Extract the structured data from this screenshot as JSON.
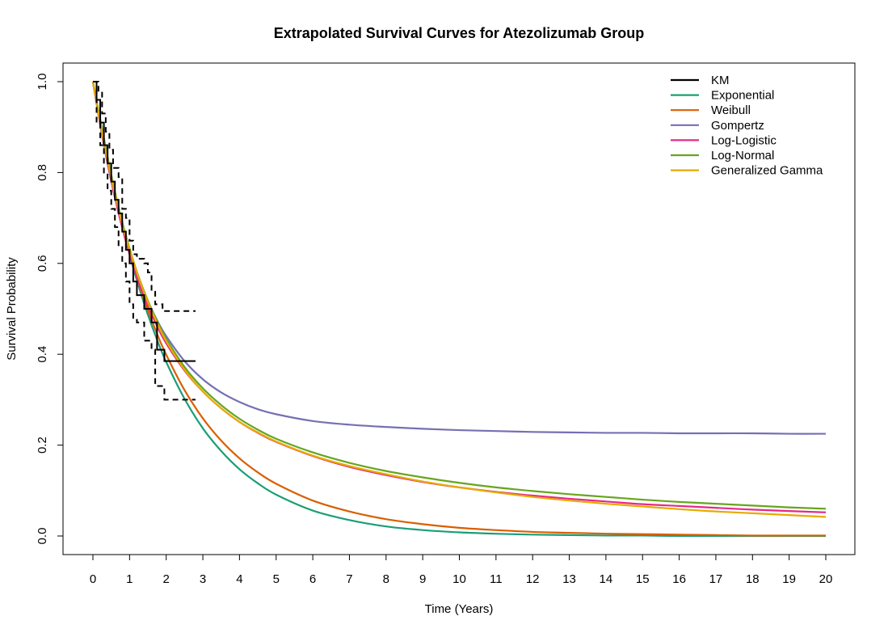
{
  "chart_data": {
    "type": "line",
    "title": "Extrapolated Survival Curves for Atezolizumab Group",
    "xlabel": "Time (Years)",
    "ylabel": "Survival Probability",
    "xlim": [
      0,
      20
    ],
    "ylim": [
      0,
      1
    ],
    "x_ticks": [
      "0",
      "1",
      "2",
      "3",
      "4",
      "5",
      "6",
      "7",
      "8",
      "9",
      "10",
      "11",
      "12",
      "13",
      "14",
      "15",
      "16",
      "17",
      "18",
      "19",
      "20"
    ],
    "y_ticks": [
      "0.0",
      "0.2",
      "0.4",
      "0.6",
      "0.8",
      "1.0"
    ],
    "grid": false,
    "legend_position": "top-right",
    "x": [
      0,
      0.25,
      0.5,
      0.75,
      1,
      1.25,
      1.5,
      1.75,
      2,
      2.5,
      3,
      3.5,
      4,
      4.5,
      5,
      6,
      7,
      8,
      9,
      10,
      11,
      12,
      13,
      14,
      15,
      16,
      17,
      18,
      19,
      20
    ],
    "series": [
      {
        "name": "Exponential",
        "color": "#1b9e77",
        "values": [
          1.0,
          0.887,
          0.787,
          0.698,
          0.619,
          0.549,
          0.487,
          0.432,
          0.383,
          0.302,
          0.237,
          0.187,
          0.147,
          0.116,
          0.091,
          0.056,
          0.035,
          0.021,
          0.013,
          0.008,
          0.005,
          0.003,
          0.002,
          0.001,
          0.001,
          0.0,
          0.0,
          0.0,
          0.0,
          0.0
        ]
      },
      {
        "name": "Weibull",
        "color": "#d95f02",
        "values": [
          1.0,
          0.885,
          0.785,
          0.698,
          0.622,
          0.556,
          0.497,
          0.445,
          0.399,
          0.321,
          0.259,
          0.21,
          0.171,
          0.14,
          0.115,
          0.078,
          0.054,
          0.037,
          0.026,
          0.018,
          0.013,
          0.009,
          0.007,
          0.005,
          0.004,
          0.003,
          0.002,
          0.001,
          0.001,
          0.001
        ]
      },
      {
        "name": "Gompertz",
        "color": "#7570b3",
        "values": [
          1.0,
          0.881,
          0.781,
          0.697,
          0.627,
          0.567,
          0.517,
          0.475,
          0.44,
          0.385,
          0.345,
          0.316,
          0.295,
          0.279,
          0.268,
          0.253,
          0.245,
          0.24,
          0.236,
          0.233,
          0.231,
          0.229,
          0.228,
          0.227,
          0.227,
          0.226,
          0.226,
          0.226,
          0.225,
          0.225
        ]
      },
      {
        "name": "Log-Logistic",
        "color": "#e7298a",
        "values": [
          1.0,
          0.885,
          0.782,
          0.694,
          0.62,
          0.558,
          0.506,
          0.462,
          0.424,
          0.364,
          0.318,
          0.281,
          0.251,
          0.227,
          0.207,
          0.176,
          0.152,
          0.134,
          0.119,
          0.107,
          0.097,
          0.089,
          0.082,
          0.076,
          0.07,
          0.066,
          0.062,
          0.058,
          0.055,
          0.052
        ]
      },
      {
        "name": "Log-Normal",
        "color": "#66a61e",
        "values": [
          1.0,
          0.896,
          0.795,
          0.707,
          0.633,
          0.57,
          0.518,
          0.473,
          0.434,
          0.372,
          0.325,
          0.288,
          0.258,
          0.234,
          0.214,
          0.184,
          0.161,
          0.143,
          0.129,
          0.117,
          0.107,
          0.099,
          0.092,
          0.086,
          0.08,
          0.075,
          0.071,
          0.067,
          0.063,
          0.06
        ]
      },
      {
        "name": "Generalized Gamma",
        "color": "#e6ab02",
        "values": [
          1.0,
          0.888,
          0.788,
          0.702,
          0.63,
          0.568,
          0.515,
          0.469,
          0.429,
          0.366,
          0.318,
          0.281,
          0.251,
          0.228,
          0.208,
          0.177,
          0.154,
          0.136,
          0.12,
          0.107,
          0.096,
          0.086,
          0.078,
          0.071,
          0.065,
          0.059,
          0.054,
          0.05,
          0.046,
          0.042
        ]
      }
    ],
    "km": {
      "name": "KM",
      "color": "#000000",
      "estimate": [
        [
          0,
          1.0
        ],
        [
          0.1,
          0.96
        ],
        [
          0.2,
          0.91
        ],
        [
          0.3,
          0.86
        ],
        [
          0.4,
          0.82
        ],
        [
          0.5,
          0.78
        ],
        [
          0.6,
          0.74
        ],
        [
          0.7,
          0.71
        ],
        [
          0.8,
          0.67
        ],
        [
          0.9,
          0.63
        ],
        [
          1.0,
          0.6
        ],
        [
          1.1,
          0.56
        ],
        [
          1.2,
          0.53
        ],
        [
          1.4,
          0.5
        ],
        [
          1.6,
          0.47
        ],
        [
          1.75,
          0.41
        ],
        [
          1.95,
          0.385
        ],
        [
          2.8,
          0.385
        ]
      ],
      "upper": [
        [
          0,
          1.0
        ],
        [
          0.1,
          1.0
        ],
        [
          0.15,
          0.98
        ],
        [
          0.25,
          0.93
        ],
        [
          0.35,
          0.89
        ],
        [
          0.45,
          0.85
        ],
        [
          0.55,
          0.81
        ],
        [
          0.7,
          0.79
        ],
        [
          0.8,
          0.72
        ],
        [
          0.9,
          0.7
        ],
        [
          1.0,
          0.65
        ],
        [
          1.1,
          0.62
        ],
        [
          1.2,
          0.61
        ],
        [
          1.4,
          0.6
        ],
        [
          1.5,
          0.58
        ],
        [
          1.6,
          0.54
        ],
        [
          1.7,
          0.51
        ],
        [
          1.9,
          0.495
        ],
        [
          2.8,
          0.495
        ]
      ],
      "lower": [
        [
          0,
          1.0
        ],
        [
          0.1,
          0.91
        ],
        [
          0.2,
          0.86
        ],
        [
          0.3,
          0.8
        ],
        [
          0.4,
          0.76
        ],
        [
          0.5,
          0.72
        ],
        [
          0.6,
          0.68
        ],
        [
          0.7,
          0.64
        ],
        [
          0.8,
          0.6
        ],
        [
          0.9,
          0.56
        ],
        [
          1.0,
          0.51
        ],
        [
          1.1,
          0.48
        ],
        [
          1.2,
          0.47
        ],
        [
          1.4,
          0.43
        ],
        [
          1.6,
          0.41
        ],
        [
          1.7,
          0.33
        ],
        [
          1.95,
          0.3
        ],
        [
          2.8,
          0.3
        ]
      ]
    },
    "legend": [
      "KM",
      "Exponential",
      "Weibull",
      "Gompertz",
      "Log-Logistic",
      "Log-Normal",
      "Generalized Gamma"
    ]
  }
}
